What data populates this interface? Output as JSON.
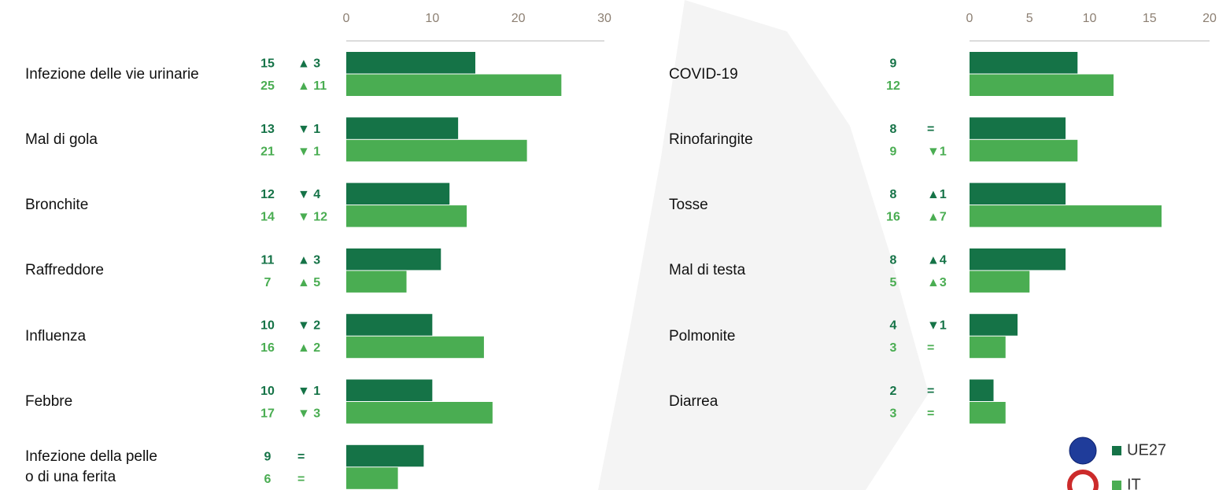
{
  "chart_data": [
    {
      "type": "bar",
      "orientation": "horizontal",
      "categories": [
        "Infezione delle vie urinarie",
        "Mal di gola",
        "Bronchite",
        "Raffreddore",
        "Influenza",
        "Febbre",
        "Infezione della pelle\no di una ferita"
      ],
      "xlim": [
        0,
        30
      ],
      "xticks": [
        0,
        10,
        20,
        30
      ],
      "series": [
        {
          "name": "UE27",
          "color": "#157347",
          "values": [
            15,
            13,
            12,
            11,
            10,
            10,
            9
          ],
          "changes": [
            3,
            -1,
            -4,
            3,
            -2,
            -1,
            0
          ],
          "change_labels": [
            "▲ 3",
            "▼ 1",
            "▼ 4",
            "▲ 3",
            "▼ 2",
            "▼ 1",
            "="
          ]
        },
        {
          "name": "IT",
          "color": "#4aad52",
          "values": [
            25,
            21,
            14,
            7,
            16,
            17,
            6
          ],
          "changes": [
            11,
            -1,
            -12,
            5,
            2,
            -3,
            0
          ],
          "change_labels": [
            "▲ 11",
            "▼ 1",
            "▼ 12",
            "▲ 5",
            "▲ 2",
            "▼ 3",
            "="
          ]
        }
      ]
    },
    {
      "type": "bar",
      "orientation": "horizontal",
      "categories": [
        "COVID-19",
        "Rinofaringite",
        "Tosse",
        "Mal di testa",
        "Polmonite",
        "Diarrea"
      ],
      "xlim": [
        0,
        20
      ],
      "xticks": [
        0,
        5,
        10,
        15,
        20
      ],
      "legend": "bottom-right",
      "series": [
        {
          "name": "UE27",
          "color": "#157347",
          "values": [
            9,
            8,
            8,
            8,
            4,
            2
          ],
          "changes": [
            null,
            0,
            1,
            4,
            -1,
            0
          ],
          "change_labels": [
            null,
            "=",
            "▲1",
            "▲4",
            "▼1",
            "="
          ]
        },
        {
          "name": "IT",
          "color": "#4aad52",
          "values": [
            12,
            9,
            16,
            5,
            3,
            3
          ],
          "changes": [
            null,
            -1,
            7,
            3,
            0,
            0
          ],
          "change_labels": [
            null,
            "▼1",
            "▲7",
            "▲3",
            "=",
            "="
          ]
        }
      ]
    }
  ]
}
